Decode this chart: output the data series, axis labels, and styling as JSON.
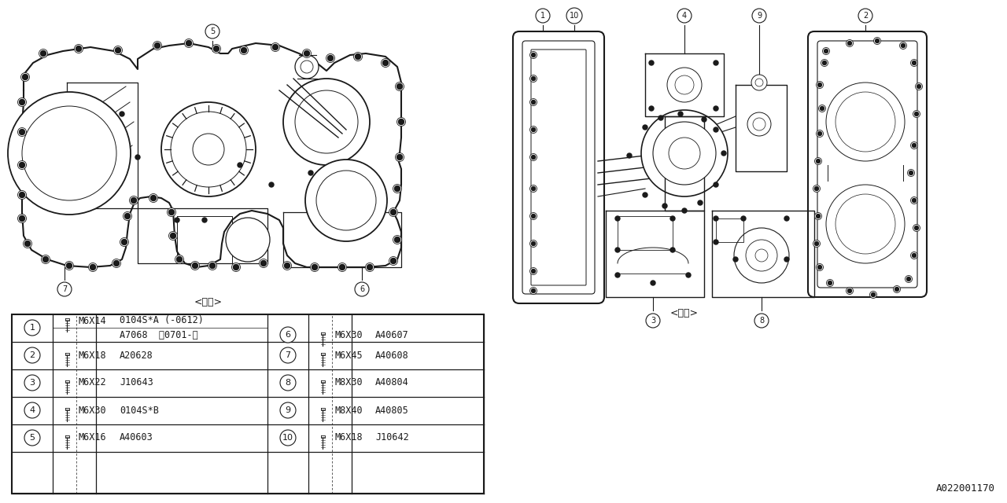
{
  "bg_color": "#ffffff",
  "line_color": "#1a1a1a",
  "part_number": "A022001170",
  "label_outside": "<外側>",
  "label_inside": "<内側>",
  "table_rows_left": [
    {
      "num": "1",
      "size": "M6X14",
      "part_top": "0104S*A (-0612)",
      "part_bot": "A7068  〘0701-〙"
    },
    {
      "num": "2",
      "size": "M6X18",
      "part": "A20628"
    },
    {
      "num": "3",
      "size": "M6X22",
      "part": "J10643"
    },
    {
      "num": "4",
      "size": "M6X30",
      "part": "0104S*B"
    },
    {
      "num": "5",
      "size": "M6X16",
      "part": "A40603"
    }
  ],
  "table_rows_right": [
    {
      "num": "6",
      "size": "M6X30",
      "part": "A40607"
    },
    {
      "num": "7",
      "size": "M6X45",
      "part": "A40608"
    },
    {
      "num": "8",
      "size": "M8X30",
      "part": "A40804"
    },
    {
      "num": "9",
      "size": "M8X40",
      "part": "A40805"
    },
    {
      "num": "10",
      "size": "M6X18",
      "part": "J10642"
    }
  ]
}
